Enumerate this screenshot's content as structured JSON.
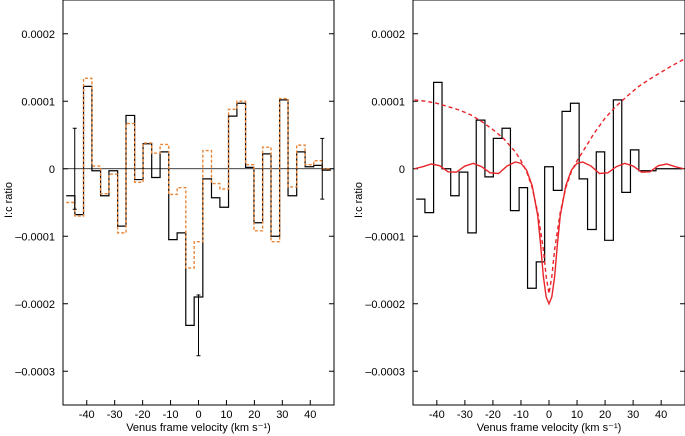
{
  "chart_data": [
    {
      "type": "line",
      "panel": "left",
      "xlabel": "Venus frame velocity (km s⁻¹)",
      "ylabel": "I:c ratio",
      "xlim": [
        -48.5,
        48.5
      ],
      "ylim": [
        -0.00035,
        0.00025
      ],
      "xticks": [
        -40,
        -30,
        -20,
        -10,
        0,
        10,
        20,
        30,
        40
      ],
      "yticks": [
        -0.0003,
        -0.0002,
        -0.0001,
        0,
        0.0001,
        0.0002
      ],
      "ytick_labels": [
        "–0.0003",
        "–0.0002",
        "–0.0001",
        "0",
        "0.0001",
        "0.0002"
      ],
      "grid": false,
      "legend": "none",
      "zero_line": true,
      "series": [
        {
          "style": "step",
          "color": "#000000",
          "x": [
            -45.8,
            -42.7,
            -39.7,
            -36.6,
            -33.6,
            -30.5,
            -27.5,
            -24.4,
            -21.4,
            -18.3,
            -15.3,
            -12.2,
            -9.2,
            -6.1,
            -3.1,
            0.0,
            3.1,
            6.1,
            9.2,
            12.2,
            15.3,
            18.3,
            21.4,
            24.4,
            27.5,
            30.5,
            33.6,
            36.6,
            39.7,
            42.7,
            45.8
          ],
          "values": [
            -4e-05,
            -6.8e-05,
            0.000122,
            -3e-06,
            -4e-05,
            -3e-06,
            -8.5e-05,
            7.9e-05,
            -1.6e-05,
            3.7e-05,
            -1.3e-05,
            2.5e-05,
            -0.000105,
            -9.5e-05,
            -0.000232,
            -0.00019,
            -1.5e-05,
            -4.3e-05,
            -5.7e-05,
            7.8e-05,
            9.7e-05,
            2e-06,
            -8e-05,
            2.2e-05,
            -0.0001,
            0.000102,
            -4e-05,
            2.5e-05,
            3e-06,
            5e-06,
            -2e-06
          ]
        },
        {
          "style": "step-dashed",
          "color": "#e8873a",
          "x": [
            -45.8,
            -42.7,
            -39.7,
            -36.6,
            -33.6,
            -30.5,
            -27.5,
            -24.4,
            -21.4,
            -18.3,
            -15.3,
            -12.2,
            -9.2,
            -6.1,
            -3.1,
            0.0,
            3.1,
            6.1,
            9.2,
            12.2,
            15.3,
            18.3,
            21.4,
            24.4,
            27.5,
            30.5,
            33.6,
            36.6,
            39.7,
            42.7,
            45.8
          ],
          "values": [
            -5e-05,
            -7e-05,
            0.000134,
            4e-06,
            -3.7e-05,
            -8e-06,
            -9.5e-05,
            6.7e-05,
            -2e-05,
            3.8e-05,
            2.3e-05,
            3.6e-05,
            -3.8e-05,
            -2.8e-05,
            -0.000147,
            -0.000108,
            2.7e-05,
            -2.2e-05,
            -3e-05,
            8.8e-05,
            0.0001,
            6e-06,
            -9.2e-05,
            3.2e-05,
            -0.000108,
            0.000104,
            -2.7e-05,
            3.5e-05,
            6e-06,
            1.2e-05,
            0.0
          ]
        }
      ],
      "error_bars": [
        {
          "x": -44.3,
          "y": 0.0,
          "err": 6e-05
        },
        {
          "x": 0.0,
          "y": -0.000232,
          "err": 4.5e-05
        },
        {
          "x": 44.3,
          "y": 0.0,
          "err": 4.5e-05
        }
      ]
    },
    {
      "type": "line",
      "panel": "right",
      "xlabel": "Venus frame velocity (km s⁻¹)",
      "ylabel": "I:c ratio",
      "xlim": [
        -48.5,
        48.5
      ],
      "ylim": [
        -0.00035,
        0.00025
      ],
      "xticks": [
        -40,
        -30,
        -20,
        -10,
        0,
        10,
        20,
        30,
        40
      ],
      "yticks": [
        -0.0003,
        -0.0002,
        -0.0001,
        0,
        0.0001,
        0.0002
      ],
      "ytick_labels": [
        "–0.0003",
        "–0.0002",
        "–0.0001",
        "0",
        "0.0001",
        "0.0002"
      ],
      "grid": false,
      "legend": "none",
      "zero_line": false,
      "series": [
        {
          "style": "step",
          "color": "#000000",
          "x": [
            -45.8,
            -42.7,
            -39.7,
            -36.6,
            -33.6,
            -30.5,
            -27.5,
            -24.4,
            -21.4,
            -18.3,
            -15.3,
            -12.2,
            -9.2,
            -6.1,
            -3.1,
            0.0,
            3.1,
            6.1,
            9.2,
            12.2,
            15.3,
            18.3,
            21.4,
            24.4,
            27.5,
            30.5,
            33.6,
            36.6,
            39.7,
            42.7,
            45.8
          ],
          "values": [
            -4.5e-05,
            -6.5e-05,
            0.000128,
            0.0,
            -4e-05,
            -5e-06,
            -9.5e-05,
            7.2e-05,
            -1.2e-05,
            4.5e-05,
            6e-05,
            -6.2e-05,
            -2.8e-05,
            -0.000177,
            -0.000138,
            3e-06,
            -3.2e-05,
            8.5e-05,
            9.7e-05,
            -1.5e-05,
            -9e-05,
            2.5e-05,
            -0.000106,
            0.000102,
            -3.5e-05,
            2.8e-05,
            -3e-06,
            -3e-06,
            0.0,
            0.0,
            0.0
          ]
        },
        {
          "style": "line",
          "color": "#e8242a",
          "x": [
            -48,
            -45,
            -42,
            -39,
            -36,
            -33,
            -30,
            -27,
            -24,
            -21,
            -18,
            -15,
            -12,
            -10,
            -8,
            -6,
            -4,
            -3,
            -2,
            -1,
            0,
            1,
            2,
            3,
            4,
            6,
            8,
            10,
            12,
            15,
            18,
            21,
            24,
            27,
            30,
            33,
            36,
            39,
            42,
            45,
            48
          ],
          "values": [
            0.0,
            3e-06,
            7e-06,
            4.5e-06,
            -4.5e-06,
            -5e-06,
            4e-06,
            8e-06,
            3e-06,
            -6e-06,
            -7e-06,
            4e-06,
            1e-05,
            8e-06,
            -2e-06,
            -2.5e-05,
            -7e-05,
            -0.000112,
            -0.00016,
            -0.00019,
            -0.0002,
            -0.00019,
            -0.00016,
            -0.000112,
            -7e-05,
            -2.5e-05,
            -2e-06,
            8e-06,
            1e-05,
            4e-06,
            -7e-06,
            -6e-06,
            3e-06,
            8e-06,
            4e-06,
            -5e-06,
            -4.5e-06,
            4.5e-06,
            7e-06,
            3e-06,
            0.0
          ]
        },
        {
          "style": "dashed",
          "color": "#e8242a",
          "x": [
            -48,
            -44,
            -40,
            -36,
            -32,
            -28,
            -24,
            -20,
            -16,
            -12,
            -10,
            -8,
            -6,
            -4,
            -2,
            -1,
            0,
            1,
            2,
            4,
            6,
            8,
            10,
            12,
            16,
            20,
            24,
            28,
            32,
            36,
            40,
            44,
            48
          ],
          "values": [
            0.000102,
            0.0001,
            9.7e-05,
            9.2e-05,
            8.7e-05,
            8e-05,
            7e-05,
            5.8e-05,
            4.4e-05,
            2.5e-05,
            1.2e-05,
            -4e-06,
            -2.8e-05,
            -6.5e-05,
            -0.00012,
            -0.00016,
            -0.000185,
            -0.00016,
            -0.00012,
            -6.5e-05,
            -2.8e-05,
            -4e-06,
            1.2e-05,
            2.5e-05,
            5.2e-05,
            7.5e-05,
            9.3e-05,
            0.000108,
            0.000122,
            0.000133,
            0.000143,
            0.000153,
            0.000162
          ]
        }
      ]
    }
  ]
}
